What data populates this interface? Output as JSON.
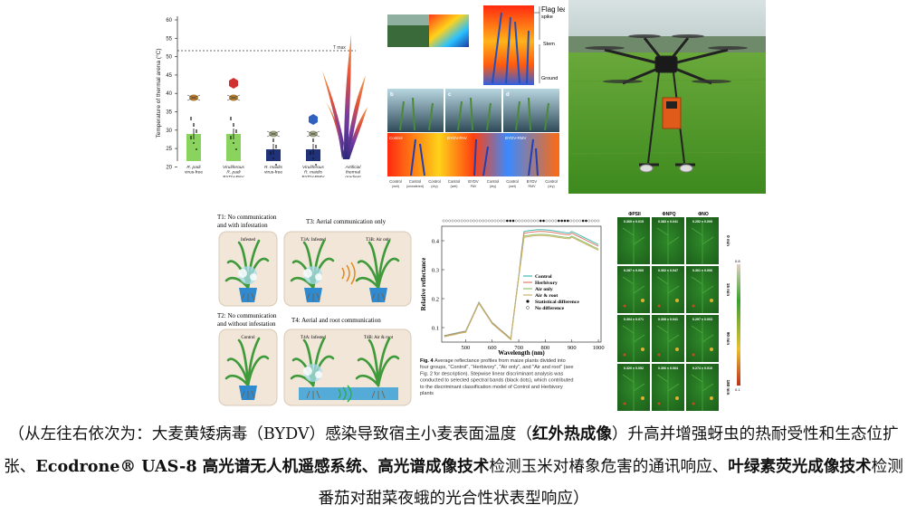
{
  "panel_a": {
    "ylabel": "Temperature of thermal arena (°C)",
    "ticks": [
      "60",
      "55",
      "50",
      "45",
      "40",
      "35",
      "30",
      "25",
      "20"
    ],
    "tmax_label": "T max",
    "categories": [
      [
        "R. padi",
        "virus-free"
      ],
      [
        "Viruliferous",
        "R. padi",
        "BYDV-PAV"
      ],
      [
        "R. maidis",
        "virus-free"
      ],
      [
        "Viruliferous",
        "R. maidis",
        "BYDV-RMV"
      ],
      [
        "Artificial",
        "thermal",
        "gradient"
      ]
    ],
    "bar_colors": [
      "#8bd35f",
      "#8bd35f",
      "#20327a",
      "#20327a"
    ]
  },
  "panel_b": {
    "labels": [
      "Flag leaf",
      "spike",
      "Stem",
      "Ground"
    ],
    "sub_labels": [
      "b",
      "c",
      "d"
    ],
    "bottom_labels": [
      [
        "Control",
        "(wet)"
      ],
      [
        "Control",
        "(unwatered)"
      ],
      [
        "Control",
        "(dry)"
      ],
      [
        "Control",
        "(wet)"
      ],
      [
        "BYDV",
        "PAV"
      ],
      [
        "Control",
        "(dry)"
      ],
      [
        "Control",
        "(wet)"
      ],
      [
        "BYDV",
        "RMV"
      ],
      [
        "Control",
        "(dry)"
      ]
    ],
    "strip_labels": [
      "Control",
      "BYDV-PAV",
      "BYDV-RMV"
    ]
  },
  "panel_d": {
    "t1": [
      "T1: No communication",
      "and with infestation"
    ],
    "t2": [
      "T2: No communication",
      "and without infestation"
    ],
    "t3": "T3: Aerial communication only",
    "t4": "T4: Aerial and root communication",
    "infested": "Infested",
    "control": "Control",
    "t3a": "T3A: Infested",
    "t3b": "T3B: Air only",
    "t4a": "T4A: Infested",
    "t4b": "T4B: Air & root"
  },
  "panel_e": {
    "ylabel": "Relative reflectance",
    "xlabel": "Wavelength (nm)",
    "yticks": [
      "0.4",
      "0.3",
      "0.2",
      "0.1"
    ],
    "xticks": [
      "500",
      "600",
      "700",
      "800",
      "900",
      "1000"
    ],
    "legend": [
      "Control",
      "Herbivory",
      "Air only",
      "Air & root",
      "Statistical difference",
      "No difference"
    ],
    "legend_colors": [
      "#45b8b0",
      "#e07a6a",
      "#8fc06a",
      "#c9b26b"
    ],
    "fig_label": "Fig. 4",
    "fig_caption_lines": [
      " Average reflectance profiles from maize plants divided into",
      "four groups, \"Control\", \"Herbivory\", \"Air only\", and \"Air and root\" (see",
      "Fig. 2 for description). Stepwise linear discriminant analysis was",
      "conducted to selected spectral bands (black dots), which contributed",
      "to the discriminant classification model of Control and Herbivory",
      "plants"
    ]
  },
  "panel_f": {
    "headers": [
      "ΦPSII",
      "ΦNPQ",
      "ΦNO"
    ],
    "rows": [
      {
        "time": "0 min",
        "values": [
          "0.365 ± 0.015",
          "0.383 ± 0.041",
          "0.252 ± 0.009"
        ]
      },
      {
        "time": "15 min",
        "values": [
          "0.287 ± 0.060",
          "0.302 ± 0.047",
          "0.301 ± 0.006"
        ]
      },
      {
        "time": "90 min",
        "values": [
          "0.304 ± 0.071",
          "0.308 ± 0.041",
          "0.297 ± 0.003"
        ]
      },
      {
        "time": "180 min",
        "values": [
          "0.320 ± 0.052",
          "0.306 ± 0.064",
          "0.274 ± 0.010"
        ]
      }
    ],
    "scale_top": "0.8",
    "scale_bottom": "0.1"
  },
  "caption": {
    "p1": "（从左往右依次为：大麦黄矮病毒（BYDV）感染导致宿主小麦表面温度（",
    "b1": "红外热成像",
    "p2": "）升高并增强蚜虫的热耐受性和生态位扩张、",
    "b2": "Ecodrone® UAS-8 高光谱无人机遥感系统、高光谱成像技术",
    "p3": "检测玉米对椿象危害的通讯响应、",
    "b3": "叶绿素荧光成像技术",
    "p4": "检测番茄对甜菜夜蛾的光合性状表型响应）"
  }
}
